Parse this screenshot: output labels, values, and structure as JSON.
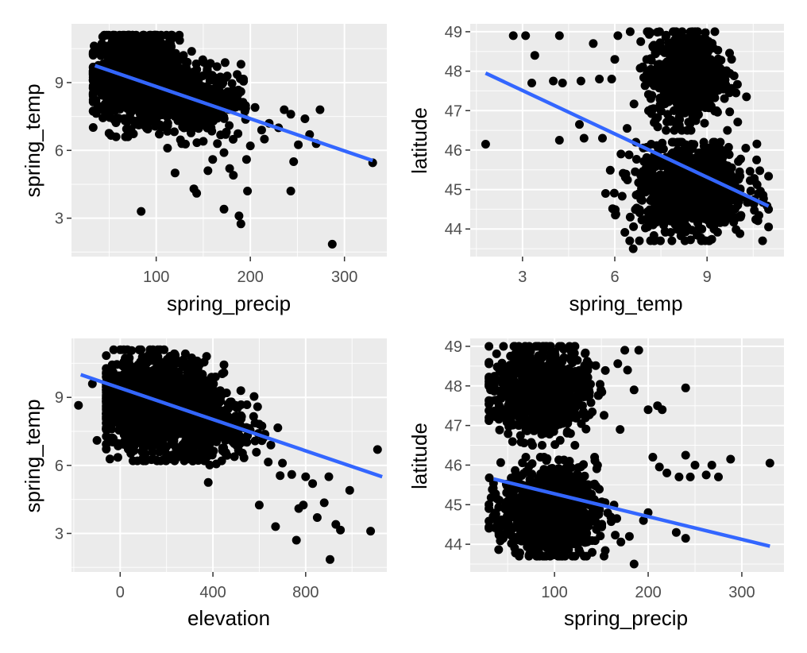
{
  "chart_data": [
    {
      "type": "scatter",
      "xlabel": "spring_precip",
      "ylabel": "spring_temp",
      "xlim": [
        10,
        345
      ],
      "ylim": [
        1.3,
        11.6
      ],
      "x_ticks": [
        100,
        200,
        300
      ],
      "y_ticks": [
        3,
        6,
        9
      ],
      "grid": true,
      "trend": {
        "x": [
          35,
          330
        ],
        "y": [
          9.75,
          5.55
        ]
      },
      "clusters": [
        {
          "cx": 80,
          "cy": 9.3,
          "sx": 22,
          "sy": 0.9,
          "n": 1400,
          "xmin": 33,
          "xmax": 160,
          "ymin": 6.6,
          "ymax": 11.1
        },
        {
          "cx": 140,
          "cy": 8.2,
          "sx": 25,
          "sy": 0.8,
          "n": 350,
          "xmin": 90,
          "xmax": 195,
          "ymin": 6.0,
          "ymax": 10.0
        }
      ],
      "points": [
        {
          "x": 84,
          "y": 3.3
        },
        {
          "x": 140,
          "y": 4.3
        },
        {
          "x": 143,
          "y": 4.1
        },
        {
          "x": 172,
          "y": 3.4
        },
        {
          "x": 188,
          "y": 3.1
        },
        {
          "x": 190,
          "y": 2.75
        },
        {
          "x": 197,
          "y": 4.2
        },
        {
          "x": 243,
          "y": 4.2
        },
        {
          "x": 287,
          "y": 1.85
        },
        {
          "x": 330,
          "y": 5.45
        },
        {
          "x": 120,
          "y": 5.0
        },
        {
          "x": 155,
          "y": 5.1
        },
        {
          "x": 160,
          "y": 5.6
        },
        {
          "x": 178,
          "y": 5.2
        },
        {
          "x": 182,
          "y": 4.9
        },
        {
          "x": 196,
          "y": 5.6
        },
        {
          "x": 215,
          "y": 6.5
        },
        {
          "x": 220,
          "y": 7.2
        },
        {
          "x": 230,
          "y": 7.0
        },
        {
          "x": 236,
          "y": 7.8
        },
        {
          "x": 243,
          "y": 7.6
        },
        {
          "x": 246,
          "y": 5.5
        },
        {
          "x": 251,
          "y": 6.25
        },
        {
          "x": 258,
          "y": 7.4
        },
        {
          "x": 263,
          "y": 6.7
        },
        {
          "x": 274,
          "y": 7.8
        },
        {
          "x": 270,
          "y": 6.3
        },
        {
          "x": 190,
          "y": 8.6
        },
        {
          "x": 205,
          "y": 7.9
        },
        {
          "x": 212,
          "y": 6.9
        },
        {
          "x": 200,
          "y": 6.2
        },
        {
          "x": 165,
          "y": 6.3
        },
        {
          "x": 172,
          "y": 5.9
        },
        {
          "x": 150,
          "y": 6.4
        },
        {
          "x": 112,
          "y": 6.1
        }
      ]
    },
    {
      "type": "scatter",
      "xlabel": "spring_temp",
      "ylabel": "latitude",
      "xlim": [
        1.3,
        11.5
      ],
      "ylim": [
        43.3,
        49.2
      ],
      "x_ticks": [
        3,
        6,
        9
      ],
      "y_ticks": [
        44,
        45,
        46,
        47,
        48,
        49
      ],
      "grid": true,
      "trend": {
        "x": [
          1.8,
          11.0
        ],
        "y": [
          47.95,
          44.58
        ]
      },
      "clusters": [
        {
          "cx": 8.3,
          "cy": 47.9,
          "sx": 0.6,
          "sy": 0.55,
          "n": 700,
          "xmin": 6.5,
          "xmax": 10.3,
          "ymin": 46.5,
          "ymax": 49.0
        },
        {
          "cx": 8.5,
          "cy": 45.0,
          "sx": 0.9,
          "sy": 0.55,
          "n": 900,
          "xmin": 5.5,
          "xmax": 11.0,
          "ymin": 43.7,
          "ymax": 46.2
        }
      ],
      "points": [
        {
          "x": 1.8,
          "y": 46.15
        },
        {
          "x": 2.7,
          "y": 48.9
        },
        {
          "x": 3.1,
          "y": 48.9
        },
        {
          "x": 3.3,
          "y": 47.7
        },
        {
          "x": 3.4,
          "y": 48.4
        },
        {
          "x": 4.2,
          "y": 48.9
        },
        {
          "x": 4.2,
          "y": 46.25
        },
        {
          "x": 4.0,
          "y": 47.75
        },
        {
          "x": 4.3,
          "y": 47.7
        },
        {
          "x": 4.9,
          "y": 47.75
        },
        {
          "x": 4.85,
          "y": 46.65
        },
        {
          "x": 5.0,
          "y": 46.3
        },
        {
          "x": 5.3,
          "y": 48.7
        },
        {
          "x": 5.5,
          "y": 47.8
        },
        {
          "x": 5.9,
          "y": 47.8
        },
        {
          "x": 5.6,
          "y": 46.3
        },
        {
          "x": 6.1,
          "y": 48.9
        },
        {
          "x": 6.0,
          "y": 48.3
        },
        {
          "x": 6.4,
          "y": 46.55
        },
        {
          "x": 6.6,
          "y": 43.5
        },
        {
          "x": 6.8,
          "y": 43.7
        },
        {
          "x": 5.7,
          "y": 44.9
        },
        {
          "x": 6.2,
          "y": 45.9
        },
        {
          "x": 6.5,
          "y": 44.3
        }
      ]
    },
    {
      "type": "scatter",
      "xlabel": "elevation",
      "ylabel": "spring_temp",
      "xlim": [
        -210,
        1150
      ],
      "ylim": [
        1.3,
        11.6
      ],
      "x_ticks": [
        0,
        400,
        800
      ],
      "y_ticks": [
        3,
        6,
        9
      ],
      "grid": true,
      "trend": {
        "x": [
          -170,
          1130
        ],
        "y": [
          10.0,
          5.5
        ]
      },
      "clusters": [
        {
          "cx": 150,
          "cy": 8.7,
          "sx": 120,
          "sy": 1.0,
          "n": 1400,
          "xmin": -60,
          "xmax": 600,
          "ymin": 6.2,
          "ymax": 11.1
        },
        {
          "cx": 400,
          "cy": 7.6,
          "sx": 100,
          "sy": 0.7,
          "n": 300,
          "xmin": 200,
          "xmax": 680,
          "ymin": 5.6,
          "ymax": 9.3
        }
      ],
      "points": [
        {
          "x": -180,
          "y": 8.65
        },
        {
          "x": -120,
          "y": 9.6
        },
        {
          "x": -100,
          "y": 7.1
        },
        {
          "x": 380,
          "y": 5.25
        },
        {
          "x": 600,
          "y": 4.25
        },
        {
          "x": 670,
          "y": 3.3
        },
        {
          "x": 690,
          "y": 5.55
        },
        {
          "x": 740,
          "y": 5.6
        },
        {
          "x": 760,
          "y": 2.7
        },
        {
          "x": 770,
          "y": 4.1
        },
        {
          "x": 790,
          "y": 4.25
        },
        {
          "x": 800,
          "y": 5.5
        },
        {
          "x": 830,
          "y": 5.2
        },
        {
          "x": 850,
          "y": 3.7
        },
        {
          "x": 880,
          "y": 4.35
        },
        {
          "x": 900,
          "y": 5.5
        },
        {
          "x": 905,
          "y": 1.85
        },
        {
          "x": 930,
          "y": 3.4
        },
        {
          "x": 950,
          "y": 3.15
        },
        {
          "x": 990,
          "y": 4.9
        },
        {
          "x": 1080,
          "y": 3.1
        },
        {
          "x": 1110,
          "y": 6.7
        },
        {
          "x": 700,
          "y": 6.1
        },
        {
          "x": 650,
          "y": 6.9
        },
        {
          "x": 620,
          "y": 7.3
        }
      ]
    },
    {
      "type": "scatter",
      "xlabel": "spring_precip",
      "ylabel": "latitude",
      "xlim": [
        10,
        345
      ],
      "ylim": [
        43.3,
        49.2
      ],
      "x_ticks": [
        100,
        200,
        300
      ],
      "y_ticks": [
        44,
        45,
        46,
        47,
        48,
        49
      ],
      "grid": true,
      "trend": {
        "x": [
          35,
          330
        ],
        "y": [
          45.65,
          43.95
        ]
      },
      "clusters": [
        {
          "cx": 85,
          "cy": 47.9,
          "sx": 25,
          "sy": 0.55,
          "n": 800,
          "xmin": 30,
          "xmax": 200,
          "ymin": 46.5,
          "ymax": 49.0
        },
        {
          "cx": 95,
          "cy": 44.8,
          "sx": 25,
          "sy": 0.55,
          "n": 1000,
          "xmin": 30,
          "xmax": 210,
          "ymin": 43.7,
          "ymax": 46.2
        }
      ],
      "points": [
        {
          "x": 175,
          "y": 48.9
        },
        {
          "x": 190,
          "y": 48.9
        },
        {
          "x": 178,
          "y": 48.4
        },
        {
          "x": 185,
          "y": 47.9
        },
        {
          "x": 240,
          "y": 47.95
        },
        {
          "x": 200,
          "y": 47.4
        },
        {
          "x": 210,
          "y": 47.5
        },
        {
          "x": 215,
          "y": 47.4
        },
        {
          "x": 170,
          "y": 46.9
        },
        {
          "x": 205,
          "y": 46.2
        },
        {
          "x": 212,
          "y": 45.95
        },
        {
          "x": 220,
          "y": 45.8
        },
        {
          "x": 233,
          "y": 45.7
        },
        {
          "x": 240,
          "y": 46.25
        },
        {
          "x": 245,
          "y": 45.7
        },
        {
          "x": 250,
          "y": 46.0
        },
        {
          "x": 262,
          "y": 45.75
        },
        {
          "x": 268,
          "y": 46.0
        },
        {
          "x": 275,
          "y": 45.7
        },
        {
          "x": 288,
          "y": 46.15
        },
        {
          "x": 330,
          "y": 46.05
        },
        {
          "x": 240,
          "y": 44.15
        },
        {
          "x": 230,
          "y": 44.3
        },
        {
          "x": 185,
          "y": 43.5
        },
        {
          "x": 180,
          "y": 44.2
        },
        {
          "x": 195,
          "y": 44.6
        },
        {
          "x": 200,
          "y": 44.8
        }
      ]
    }
  ]
}
